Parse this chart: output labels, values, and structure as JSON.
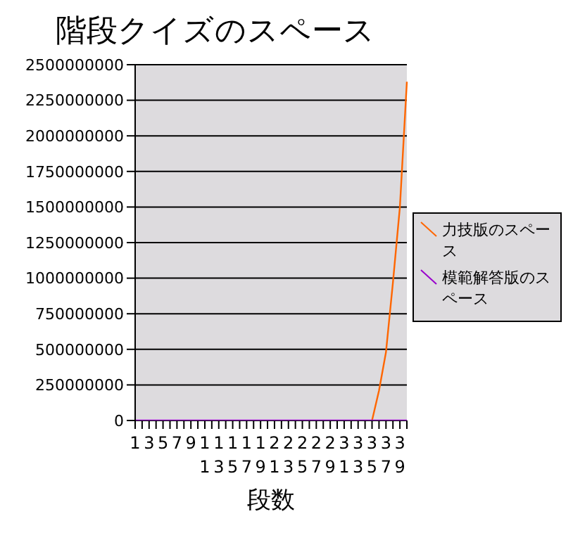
{
  "chart_data": {
    "type": "line",
    "title": "階段クイズのスペース",
    "xlabel": "段数",
    "categories": [
      "1",
      null,
      "3",
      null,
      "5",
      null,
      "7",
      null,
      "9",
      null,
      "11",
      null,
      "13",
      null,
      "15",
      null,
      "17",
      null,
      "19",
      null,
      "21",
      null,
      "23",
      null,
      "25",
      null,
      "27",
      null,
      "29",
      null,
      "31",
      null,
      "33",
      null,
      "35",
      null,
      "37",
      null,
      "39",
      null
    ],
    "series": [
      {
        "name": "力技版のスペース",
        "color": "#ff6600",
        "values": [
          null,
          null,
          null,
          null,
          null,
          null,
          null,
          null,
          null,
          null,
          null,
          null,
          null,
          null,
          null,
          null,
          null,
          null,
          null,
          null,
          null,
          null,
          null,
          null,
          null,
          null,
          null,
          null,
          null,
          null,
          null,
          null,
          null,
          null,
          0,
          210000000,
          480000000,
          970000000,
          1500000000,
          2380000000
        ]
      },
      {
        "name": "模範解答版のスペース",
        "color": "#9900cc",
        "values": [
          0,
          0,
          0,
          0,
          0,
          0,
          0,
          0,
          0,
          0,
          0,
          0,
          0,
          0,
          0,
          0,
          0,
          0,
          0,
          0,
          0,
          0,
          0,
          0,
          0,
          0,
          0,
          0,
          0,
          0,
          0,
          0,
          0,
          0,
          0,
          0,
          0,
          0,
          0,
          0
        ]
      }
    ],
    "ylim": [
      0,
      2500000000
    ],
    "yticks": [
      0,
      250000000,
      500000000,
      750000000,
      1000000000,
      1250000000,
      1500000000,
      1750000000,
      2000000000,
      2250000000,
      2500000000
    ],
    "grid": "y",
    "legend": "right",
    "marker": "none",
    "line_style": "solid"
  }
}
